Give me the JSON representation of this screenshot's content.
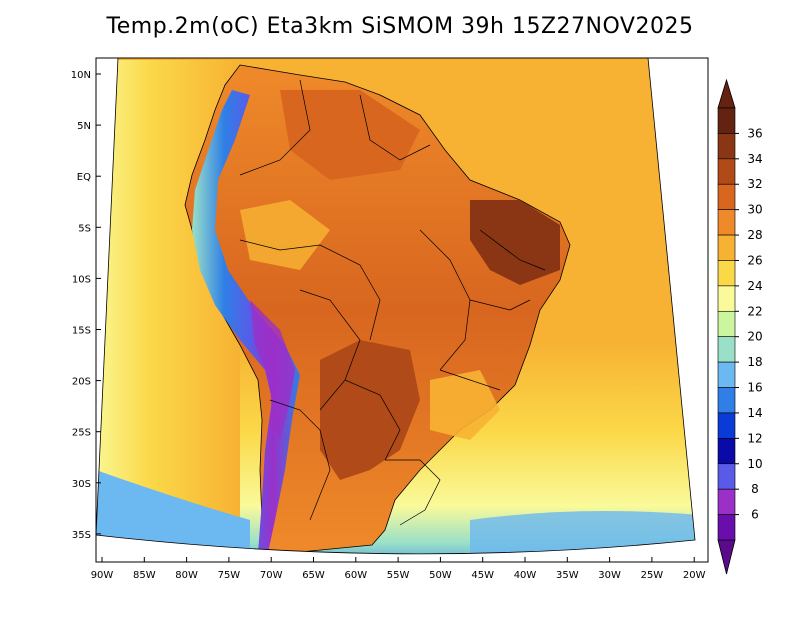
{
  "title": "Temp.2m(oC) Eta3km SiSMOM 39h 15Z27NOV2025",
  "map": {
    "variable": "2m air temperature",
    "units": "oC",
    "lat_ticks": [
      "10N",
      "5N",
      "EQ",
      "5S",
      "10S",
      "15S",
      "20S",
      "25S",
      "30S",
      "35S"
    ],
    "lon_ticks": [
      "90W",
      "85W",
      "80W",
      "75W",
      "70W",
      "65W",
      "60W",
      "55W",
      "50W",
      "45W",
      "40W",
      "35W",
      "30W",
      "25W",
      "20W"
    ]
  },
  "colorbar": {
    "labels": [
      "6",
      "8",
      "10",
      "12",
      "14",
      "16",
      "18",
      "20",
      "22",
      "24",
      "26",
      "28",
      "30",
      "32",
      "34",
      "36"
    ],
    "colors": [
      "#6a0dad",
      "#9b30c8",
      "#5a5ae8",
      "#0a0aa8",
      "#0b3bd6",
      "#2f7fe6",
      "#6cb8f0",
      "#9ae0c8",
      "#ccf5a0",
      "#fafa9a",
      "#fbd848",
      "#f7b233",
      "#ef8a2a",
      "#d8661f",
      "#b04a18",
      "#8a3614",
      "#642310"
    ],
    "under_color": "#5a0a8a",
    "over_color": "#642310"
  },
  "palette": {
    "ocean_warm": "#f7b233",
    "ocean_mid": "#fbd848",
    "ocean_cool": "#fafa9a",
    "land_hot": "#d8661f",
    "land_very_hot": "#b04a18",
    "andes_cold": "#2f7fe6",
    "andes_coldest": "#6a0dad"
  }
}
